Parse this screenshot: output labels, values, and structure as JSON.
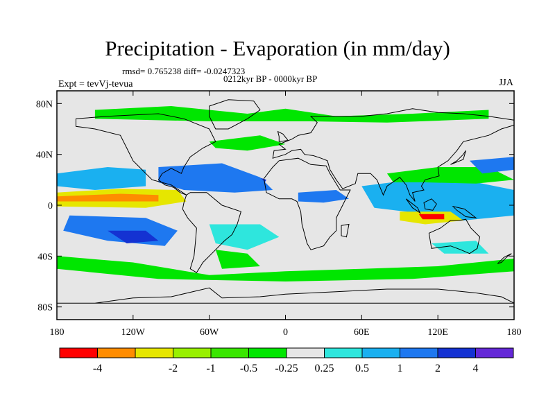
{
  "header": {
    "title": "Precipitation - Evaporation (in mm/day)",
    "stats": "rmsd= 0.765238 diff= -0.0247323",
    "period": "0212kyr BP - 0000kyr BP",
    "experiment": "Expt = tevVj-tevua",
    "season": "JJA"
  },
  "axes": {
    "lat_ticks": [
      {
        "value": 80,
        "label": "80N"
      },
      {
        "value": 40,
        "label": "40N"
      },
      {
        "value": 0,
        "label": "0"
      },
      {
        "value": -40,
        "label": "40S"
      },
      {
        "value": -80,
        "label": "80S"
      }
    ],
    "lon_ticks": [
      {
        "value": -180,
        "label": "180"
      },
      {
        "value": -120,
        "label": "120W"
      },
      {
        "value": -60,
        "label": "60W"
      },
      {
        "value": 0,
        "label": "0"
      },
      {
        "value": 60,
        "label": "60E"
      },
      {
        "value": 120,
        "label": "120E"
      },
      {
        "value": 180,
        "label": "180"
      }
    ]
  },
  "colorbar": {
    "colors": [
      "#ff0000",
      "#ff8c00",
      "#e6e600",
      "#98f000",
      "#39e600",
      "#00e600",
      "#e6e6e6",
      "#2ee6dd",
      "#1ab0f0",
      "#1e78f0",
      "#1432d2",
      "#6428d7"
    ],
    "labels": [
      "-4",
      "-2",
      "-1",
      "-0.5",
      "-0.25",
      "0.25",
      "0.5",
      "1",
      "2",
      "4"
    ],
    "label_after_box": [
      1,
      3,
      4,
      5,
      6,
      7,
      8,
      9,
      10,
      11
    ]
  },
  "map": {
    "background": "#e6e6e6",
    "lon_range": [
      -180,
      180
    ],
    "lat_range": [
      -90,
      90
    ]
  },
  "regions": [
    {
      "name": "trop-atlantic-band",
      "color": "#1432d2",
      "points": [
        [
          -95,
          28
        ],
        [
          -60,
          27
        ],
        [
          -30,
          25
        ],
        [
          -15,
          20
        ],
        [
          -20,
          12
        ],
        [
          -45,
          15
        ],
        [
          -75,
          17
        ],
        [
          -95,
          22
        ]
      ]
    },
    {
      "name": "atlantic-itcz-blue",
      "color": "#1e78f0",
      "points": [
        [
          -100,
          30
        ],
        [
          -50,
          33
        ],
        [
          -20,
          22
        ],
        [
          -10,
          12
        ],
        [
          -40,
          10
        ],
        [
          -80,
          12
        ],
        [
          -100,
          18
        ]
      ]
    },
    {
      "name": "nh-pacific-blue",
      "color": "#1ab0f0",
      "points": [
        [
          -180,
          25
        ],
        [
          -140,
          30
        ],
        [
          -110,
          28
        ],
        [
          -110,
          15
        ],
        [
          -150,
          12
        ],
        [
          -180,
          15
        ]
      ]
    },
    {
      "name": "east-pac-red",
      "color": "#ff0000",
      "points": [
        [
          -130,
          10
        ],
        [
          -95,
          10
        ],
        [
          -80,
          6
        ],
        [
          -95,
          2
        ],
        [
          -125,
          3
        ]
      ]
    },
    {
      "name": "east-pac-yellow",
      "color": "#e6e600",
      "points": [
        [
          -180,
          10
        ],
        [
          -130,
          13
        ],
        [
          -85,
          12
        ],
        [
          -78,
          3
        ],
        [
          -110,
          -2
        ],
        [
          -180,
          -1
        ]
      ]
    },
    {
      "name": "east-pac-orange",
      "color": "#ff8c00",
      "points": [
        [
          -180,
          7
        ],
        [
          -130,
          9
        ],
        [
          -100,
          8
        ],
        [
          -100,
          3
        ],
        [
          -180,
          3
        ]
      ]
    },
    {
      "name": "sh-pacific-blue",
      "color": "#1e78f0",
      "points": [
        [
          -170,
          -8
        ],
        [
          -110,
          -10
        ],
        [
          -85,
          -20
        ],
        [
          -95,
          -32
        ],
        [
          -140,
          -28
        ],
        [
          -175,
          -20
        ]
      ]
    },
    {
      "name": "sh-pacific-dark",
      "color": "#1432d2",
      "points": [
        [
          -140,
          -20
        ],
        [
          -110,
          -20
        ],
        [
          -100,
          -28
        ],
        [
          -125,
          -30
        ]
      ]
    },
    {
      "name": "sh-atlantic-cyan",
      "color": "#2ee6dd",
      "points": [
        [
          -60,
          -15
        ],
        [
          -20,
          -15
        ],
        [
          -5,
          -25
        ],
        [
          -30,
          -35
        ],
        [
          -55,
          -30
        ]
      ]
    },
    {
      "name": "south-atlantic-green",
      "color": "#00e600",
      "points": [
        [
          -55,
          -35
        ],
        [
          -30,
          -38
        ],
        [
          -20,
          -48
        ],
        [
          -50,
          -50
        ]
      ]
    },
    {
      "name": "indian-blue",
      "color": "#1432d2",
      "points": [
        [
          100,
          5
        ],
        [
          140,
          8
        ],
        [
          180,
          3
        ],
        [
          180,
          -3
        ],
        [
          140,
          -5
        ],
        [
          110,
          -2
        ]
      ]
    },
    {
      "name": "wpac-cyan",
      "color": "#1ab0f0",
      "points": [
        [
          60,
          15
        ],
        [
          100,
          20
        ],
        [
          140,
          20
        ],
        [
          180,
          12
        ],
        [
          180,
          -8
        ],
        [
          140,
          -12
        ],
        [
          95,
          -5
        ],
        [
          70,
          -2
        ]
      ]
    },
    {
      "name": "maritime-yellow",
      "color": "#e6e600",
      "points": [
        [
          90,
          -5
        ],
        [
          130,
          -5
        ],
        [
          140,
          -12
        ],
        [
          110,
          -15
        ],
        [
          90,
          -12
        ]
      ]
    },
    {
      "name": "maritime-red",
      "color": "#ff0000",
      "points": [
        [
          105,
          -7
        ],
        [
          125,
          -7
        ],
        [
          125,
          -11
        ],
        [
          108,
          -11
        ]
      ]
    },
    {
      "name": "asia-green",
      "color": "#00e600",
      "points": [
        [
          80,
          25
        ],
        [
          120,
          30
        ],
        [
          160,
          30
        ],
        [
          180,
          20
        ],
        [
          150,
          17
        ],
        [
          110,
          18
        ],
        [
          85,
          18
        ]
      ]
    },
    {
      "name": "africa-blue",
      "color": "#1e78f0",
      "points": [
        [
          10,
          10
        ],
        [
          40,
          12
        ],
        [
          50,
          5
        ],
        [
          30,
          2
        ],
        [
          10,
          3
        ]
      ]
    },
    {
      "name": "nh-atlantic-green",
      "color": "#00e600",
      "points": [
        [
          -60,
          50
        ],
        [
          -20,
          55
        ],
        [
          0,
          48
        ],
        [
          -30,
          43
        ],
        [
          -55,
          45
        ]
      ]
    },
    {
      "name": "arctic-green",
      "color": "#00e600",
      "points": [
        [
          -150,
          75
        ],
        [
          -90,
          78
        ],
        [
          -30,
          72
        ],
        [
          0,
          76
        ],
        [
          40,
          70
        ],
        [
          100,
          72
        ],
        [
          160,
          75
        ],
        [
          160,
          68
        ],
        [
          80,
          65
        ],
        [
          20,
          66
        ],
        [
          -60,
          66
        ],
        [
          -150,
          68
        ]
      ]
    },
    {
      "name": "sh-highlat-green",
      "color": "#00e600",
      "points": [
        [
          -180,
          -40
        ],
        [
          -120,
          -45
        ],
        [
          -60,
          -55
        ],
        [
          0,
          -52
        ],
        [
          60,
          -50
        ],
        [
          120,
          -48
        ],
        [
          180,
          -42
        ],
        [
          180,
          -52
        ],
        [
          100,
          -58
        ],
        [
          0,
          -60
        ],
        [
          -100,
          -58
        ],
        [
          -180,
          -50
        ]
      ]
    },
    {
      "name": "australia-cyan",
      "color": "#2ee6dd",
      "points": [
        [
          115,
          -30
        ],
        [
          150,
          -28
        ],
        [
          160,
          -38
        ],
        [
          125,
          -38
        ]
      ]
    },
    {
      "name": "nw-pac-blue",
      "color": "#1e78f0",
      "points": [
        [
          145,
          35
        ],
        [
          180,
          38
        ],
        [
          180,
          28
        ],
        [
          155,
          25
        ]
      ]
    }
  ],
  "coastlines": [
    {
      "name": "north-america",
      "points": [
        [
          -165,
          68
        ],
        [
          -140,
          70
        ],
        [
          -100,
          72
        ],
        [
          -80,
          68
        ],
        [
          -60,
          60
        ],
        [
          -55,
          50
        ],
        [
          -65,
          45
        ],
        [
          -75,
          38
        ],
        [
          -80,
          30
        ],
        [
          -82,
          25
        ],
        [
          -90,
          29
        ],
        [
          -97,
          25
        ],
        [
          -100,
          20
        ],
        [
          -95,
          16
        ],
        [
          -88,
          14
        ],
        [
          -83,
          10
        ],
        [
          -78,
          8
        ],
        [
          -90,
          16
        ],
        [
          -105,
          20
        ],
        [
          -110,
          25
        ],
        [
          -115,
          30
        ],
        [
          -120,
          35
        ],
        [
          -125,
          45
        ],
        [
          -130,
          55
        ],
        [
          -150,
          60
        ],
        [
          -165,
          62
        ]
      ]
    },
    {
      "name": "south-america",
      "points": [
        [
          -78,
          8
        ],
        [
          -75,
          10
        ],
        [
          -62,
          10
        ],
        [
          -50,
          0
        ],
        [
          -35,
          -5
        ],
        [
          -38,
          -15
        ],
        [
          -42,
          -23
        ],
        [
          -48,
          -28
        ],
        [
          -58,
          -38
        ],
        [
          -65,
          -45
        ],
        [
          -70,
          -53
        ],
        [
          -75,
          -50
        ],
        [
          -72,
          -40
        ],
        [
          -71,
          -30
        ],
        [
          -70,
          -18
        ],
        [
          -77,
          -10
        ],
        [
          -81,
          -3
        ],
        [
          -80,
          2
        ]
      ]
    },
    {
      "name": "africa",
      "points": [
        [
          -17,
          21
        ],
        [
          -10,
          30
        ],
        [
          -5,
          35
        ],
        [
          10,
          37
        ],
        [
          20,
          32
        ],
        [
          32,
          31
        ],
        [
          35,
          25
        ],
        [
          43,
          12
        ],
        [
          51,
          12
        ],
        [
          45,
          0
        ],
        [
          40,
          -10
        ],
        [
          40,
          -20
        ],
        [
          35,
          -25
        ],
        [
          30,
          -32
        ],
        [
          20,
          -35
        ],
        [
          17,
          -30
        ],
        [
          13,
          -15
        ],
        [
          12,
          -5
        ],
        [
          9,
          3
        ],
        [
          5,
          5
        ],
        [
          -5,
          5
        ],
        [
          -15,
          10
        ]
      ]
    },
    {
      "name": "europe-asia",
      "points": [
        [
          -10,
          37
        ],
        [
          -9,
          43
        ],
        [
          0,
          44
        ],
        [
          -5,
          48
        ],
        [
          5,
          52
        ],
        [
          10,
          55
        ],
        [
          20,
          57
        ],
        [
          25,
          65
        ],
        [
          20,
          70
        ],
        [
          40,
          70
        ],
        [
          60,
          70
        ],
        [
          80,
          72
        ],
        [
          100,
          76
        ],
        [
          120,
          73
        ],
        [
          140,
          72
        ],
        [
          160,
          70
        ],
        [
          180,
          67
        ],
        [
          180,
          63
        ],
        [
          170,
          60
        ],
        [
          160,
          55
        ],
        [
          140,
          50
        ],
        [
          135,
          43
        ],
        [
          128,
          35
        ],
        [
          120,
          30
        ],
        [
          121,
          23
        ],
        [
          110,
          20
        ],
        [
          107,
          15
        ],
        [
          109,
          12
        ],
        [
          100,
          10
        ],
        [
          102,
          3
        ],
        [
          98,
          8
        ],
        [
          95,
          16
        ],
        [
          90,
          22
        ],
        [
          80,
          15
        ],
        [
          77,
          8
        ],
        [
          72,
          20
        ],
        [
          67,
          25
        ],
        [
          57,
          25
        ],
        [
          55,
          17
        ],
        [
          45,
          13
        ],
        [
          40,
          20
        ],
        [
          35,
          28
        ],
        [
          33,
          35
        ],
        [
          28,
          37
        ],
        [
          22,
          39
        ],
        [
          15,
          40
        ],
        [
          12,
          44
        ],
        [
          5,
          43
        ],
        [
          0,
          40
        ]
      ]
    },
    {
      "name": "australia",
      "points": [
        [
          113,
          -22
        ],
        [
          122,
          -18
        ],
        [
          130,
          -12
        ],
        [
          137,
          -12
        ],
        [
          142,
          -11
        ],
        [
          146,
          -18
        ],
        [
          153,
          -25
        ],
        [
          151,
          -34
        ],
        [
          145,
          -38
        ],
        [
          138,
          -35
        ],
        [
          130,
          -32
        ],
        [
          115,
          -34
        ]
      ]
    },
    {
      "name": "greenland",
      "points": [
        [
          -55,
          60
        ],
        [
          -45,
          60
        ],
        [
          -30,
          68
        ],
        [
          -20,
          75
        ],
        [
          -25,
          82
        ],
        [
          -45,
          83
        ],
        [
          -60,
          78
        ],
        [
          -60,
          70
        ]
      ]
    },
    {
      "name": "antarctica",
      "points": [
        [
          -180,
          -77
        ],
        [
          -150,
          -77
        ],
        [
          -120,
          -73
        ],
        [
          -90,
          -72
        ],
        [
          -60,
          -65
        ],
        [
          -50,
          -73
        ],
        [
          -20,
          -72
        ],
        [
          0,
          -70
        ],
        [
          40,
          -68
        ],
        [
          80,
          -66
        ],
        [
          120,
          -66
        ],
        [
          150,
          -69
        ],
        [
          170,
          -72
        ],
        [
          180,
          -77
        ]
      ]
    },
    {
      "name": "borneo",
      "points": [
        [
          109,
          2
        ],
        [
          115,
          5
        ],
        [
          119,
          1
        ],
        [
          116,
          -4
        ],
        [
          110,
          -3
        ]
      ]
    },
    {
      "name": "sumatra",
      "points": [
        [
          95,
          5
        ],
        [
          104,
          -2
        ],
        [
          106,
          -6
        ],
        [
          100,
          -2
        ]
      ]
    },
    {
      "name": "new-guinea",
      "points": [
        [
          132,
          -1
        ],
        [
          141,
          -3
        ],
        [
          150,
          -10
        ],
        [
          142,
          -9
        ],
        [
          135,
          -4
        ]
      ]
    },
    {
      "name": "madagascar",
      "points": [
        [
          44,
          -16
        ],
        [
          50,
          -15
        ],
        [
          48,
          -25
        ],
        [
          44,
          -24
        ]
      ]
    },
    {
      "name": "japan",
      "points": [
        [
          130,
          32
        ],
        [
          135,
          34
        ],
        [
          140,
          36
        ],
        [
          142,
          43
        ],
        [
          140,
          40
        ],
        [
          135,
          35
        ]
      ]
    },
    {
      "name": "uk",
      "points": [
        [
          -5,
          50
        ],
        [
          2,
          51
        ],
        [
          -2,
          56
        ],
        [
          -6,
          58
        ],
        [
          -5,
          54
        ]
      ]
    },
    {
      "name": "new-zealand",
      "points": [
        [
          167,
          -46
        ],
        [
          172,
          -41
        ],
        [
          178,
          -38
        ],
        [
          174,
          -41
        ],
        [
          170,
          -45
        ]
      ]
    }
  ]
}
